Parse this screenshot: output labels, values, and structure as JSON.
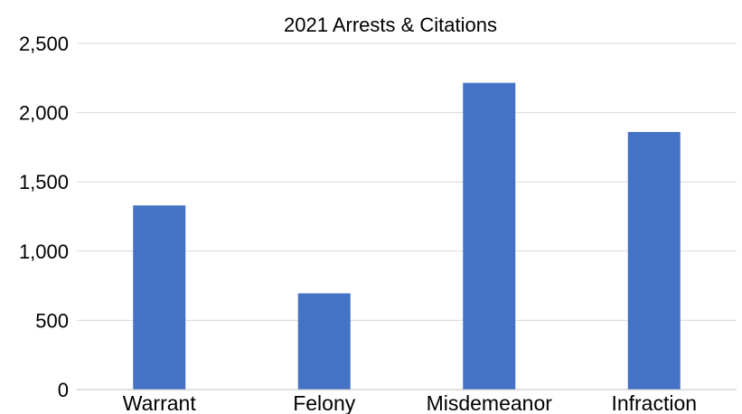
{
  "chart_data": {
    "type": "bar",
    "title": "2021 Arrests & Citations",
    "xlabel": "",
    "ylabel": "",
    "categories": [
      "Warrant",
      "Felony",
      "Misdemeanor",
      "Infraction"
    ],
    "values": [
      1330,
      695,
      2215,
      1860
    ],
    "ylim": [
      0,
      2500
    ],
    "yticks": [
      0,
      500,
      1000,
      1500,
      2000,
      2500
    ],
    "ytick_labels": [
      "0",
      "500",
      "1,000",
      "1,500",
      "2,000",
      "2,500"
    ],
    "grid": true,
    "legend": "none",
    "bar_color": "#4472C4"
  }
}
